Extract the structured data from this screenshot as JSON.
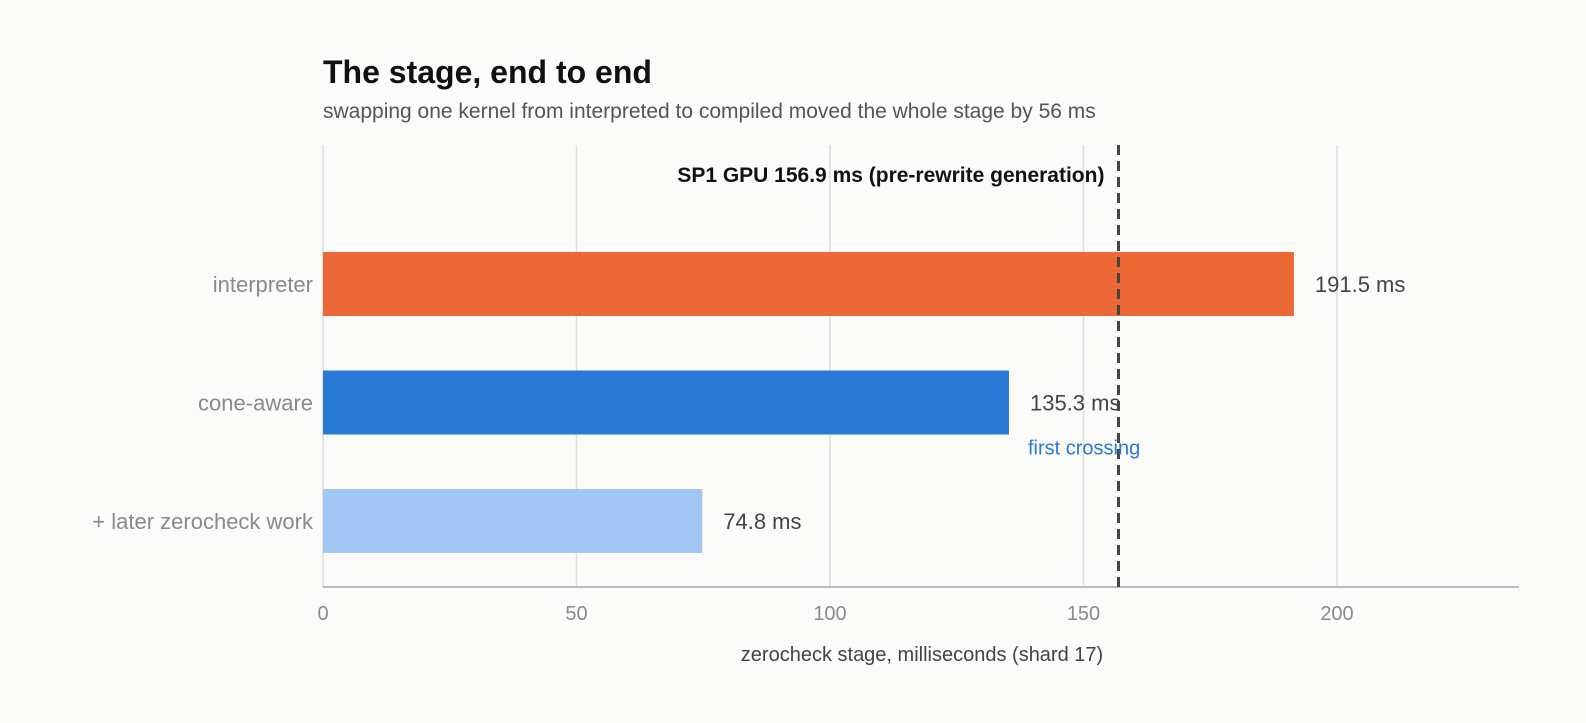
{
  "chart_data": {
    "type": "bar",
    "orientation": "horizontal",
    "title": "The stage, end to end",
    "subtitle": "swapping one kernel from interpreted to compiled moved the whole stage by 56 ms",
    "xlabel": "zerocheck stage, milliseconds (shard 17)",
    "ylabel": "",
    "xlim": [
      0,
      235
    ],
    "xticks": [
      0,
      50,
      100,
      150,
      200
    ],
    "grid": true,
    "categories": [
      "interpreter",
      "cone-aware",
      "+ later zerocheck work"
    ],
    "values": [
      191.5,
      135.3,
      74.8
    ],
    "value_labels": [
      "191.5 ms",
      "135.3 ms",
      "74.8 ms"
    ],
    "colors": [
      "#ec6837",
      "#2979d6",
      "#a2c6f4"
    ],
    "reference_line": {
      "value": 156.9,
      "label": "SP1 GPU  156.9 ms  (pre-rewrite generation)",
      "style": "dashed",
      "color": "#444444"
    },
    "annotations": [
      {
        "text": "first crossing",
        "category": "cone-aware",
        "color": "#2979d6"
      }
    ]
  }
}
